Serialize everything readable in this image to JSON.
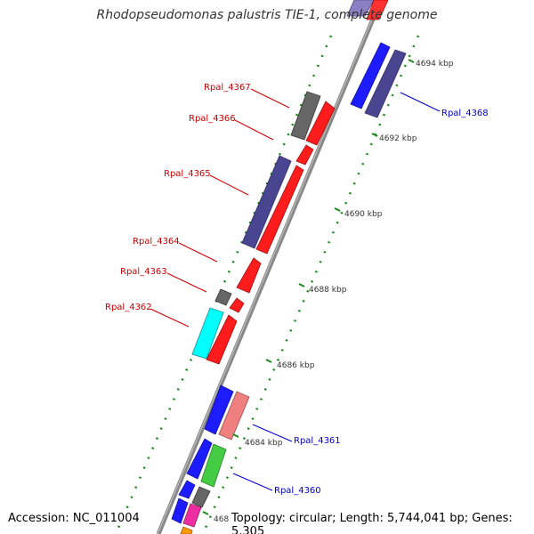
{
  "title": "Rhodopseudomonas palustris TIE-1, complete genome",
  "accession": "Accession: NC_011004",
  "summary": "Topology: circular; Length: 5,744,041 bp; Genes: 5,305",
  "colors": {
    "backbone": "#888888",
    "tick": "#1a8a1a",
    "label_forward": "#cc0000",
    "label_reverse": "#0000cc"
  },
  "ticks": [
    {
      "label": "4694 kbp"
    },
    {
      "label": "4692 kbp"
    },
    {
      "label": "4690 kbp"
    },
    {
      "label": "4688 kbp"
    },
    {
      "label": "4686 kbp"
    },
    {
      "label": "4684 kbp"
    },
    {
      "label": "468:"
    }
  ],
  "gene_labels": [
    {
      "name": "Rpal_4368",
      "strand": "reverse"
    },
    {
      "name": "Rpal_4367",
      "strand": "forward"
    },
    {
      "name": "Rpal_4366",
      "strand": "forward"
    },
    {
      "name": "Rpal_4365",
      "strand": "forward"
    },
    {
      "name": "Rpal_4364",
      "strand": "forward"
    },
    {
      "name": "Rpal_4363",
      "strand": "forward"
    },
    {
      "name": "Rpal_4362",
      "strand": "forward"
    },
    {
      "name": "Rpal_4361",
      "strand": "reverse"
    },
    {
      "name": "Rpal_4360",
      "strand": "reverse"
    }
  ]
}
